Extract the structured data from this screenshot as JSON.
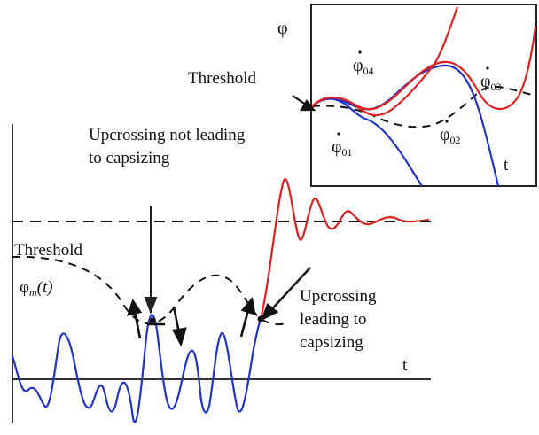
{
  "labels": {
    "upcrossing_not": [
      "Upcrossing not leading",
      "to capsizing"
    ],
    "threshold_main": "Threshold",
    "phi_m": "φ",
    "phi_m_sub": "m",
    "phi_m_arg": "(t)",
    "upcrossing_leading": [
      "Upcrossing",
      "leading to",
      "capsizing"
    ],
    "t_main": "t",
    "inset_phi": "φ",
    "inset_threshold": "Threshold",
    "phi04": "φ",
    "phi04_sub": "04",
    "phi03": "φ",
    "phi03_sub": "03",
    "phi01": "φ",
    "phi01_sub": "01",
    "phi02": "φ",
    "phi02_sub": "02",
    "t_inset": "t"
  },
  "colors": {
    "response_blue": "#2233cc",
    "capsize_red": "#e02020",
    "threshold_dash": "#111111",
    "axis": "#333333"
  }
}
